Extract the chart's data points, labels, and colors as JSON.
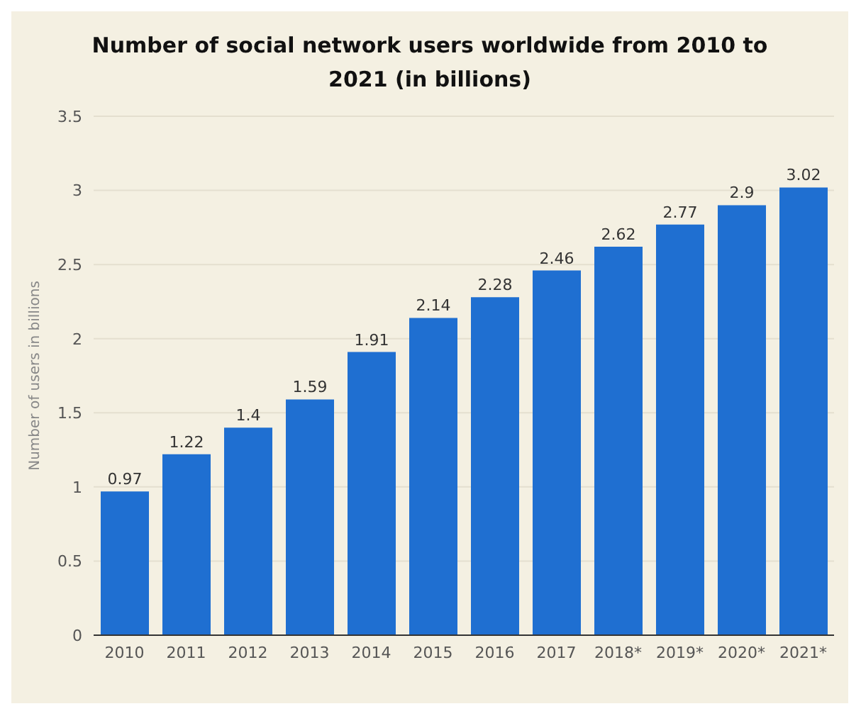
{
  "chart_data": {
    "type": "bar",
    "title": "Number of social network users worldwide from 2010 to 2021 (in billions)",
    "ylabel": "Number of users in billions",
    "categories": [
      "2010",
      "2011",
      "2012",
      "2013",
      "2014",
      "2015",
      "2016",
      "2017",
      "2018*",
      "2019*",
      "2020*",
      "2021*"
    ],
    "values": [
      0.97,
      1.22,
      1.4,
      1.59,
      1.91,
      2.14,
      2.28,
      2.46,
      2.62,
      2.77,
      2.9,
      3.02
    ],
    "color": "#1f6fd1",
    "ylim": [
      0,
      3.5
    ],
    "yticks": [
      0,
      0.5,
      1,
      1.5,
      2,
      2.5,
      3,
      3.5
    ],
    "grid": "y",
    "data_labels": true
  }
}
